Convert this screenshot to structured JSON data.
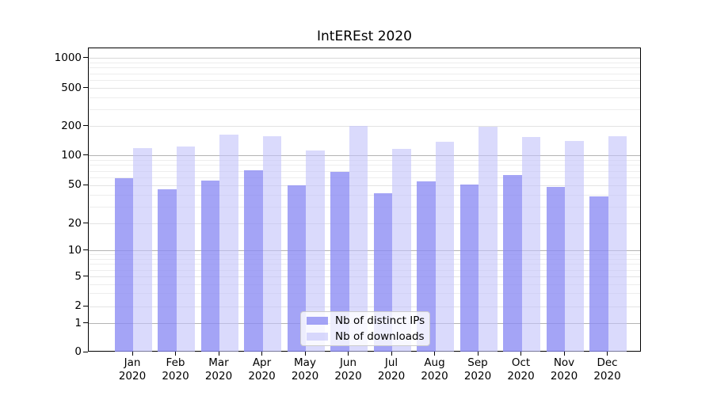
{
  "figure": {
    "background": "#ffffff"
  },
  "chart_data": {
    "type": "bar",
    "title": "IntEREst 2020",
    "categories": [
      "Jan",
      "Feb",
      "Mar",
      "Apr",
      "May",
      "Jun",
      "Jul",
      "Aug",
      "Sep",
      "Oct",
      "Nov",
      "Dec"
    ],
    "category_year": "2020",
    "series": [
      {
        "name": "Nb of distinct IPs",
        "color": "rgba(138,138,243,0.78)",
        "values": [
          60,
          46,
          56,
          72,
          50,
          69,
          42,
          55,
          51,
          64,
          49,
          39
        ]
      },
      {
        "name": "Nb of downloads",
        "color": "rgba(196,196,250,0.62)",
        "values": [
          119,
          124,
          165,
          158,
          114,
          205,
          117,
          140,
          200,
          156,
          143,
          160
        ]
      }
    ],
    "y_axis": {
      "scale": "symlog",
      "tick_values": [
        0,
        1,
        2,
        5,
        10,
        20,
        50,
        100,
        200,
        500,
        1000
      ],
      "tick_labels": [
        "0",
        "1",
        "2",
        "5",
        "10",
        "20",
        "50",
        "100",
        "200",
        "500",
        "1000"
      ],
      "top_value": 1300
    },
    "x_axis": {
      "tick_labels_line2": "2020"
    },
    "grid": {
      "minor_values": [
        3,
        4,
        6,
        7,
        8,
        9,
        30,
        40,
        60,
        70,
        80,
        90,
        300,
        400,
        600,
        700,
        800,
        900
      ],
      "minor_color": "#ededed",
      "labeled_color": "#e3e3e3",
      "major_values": [
        1,
        10,
        100
      ],
      "major_color": "#b4b4b4",
      "top_line_value": 1000,
      "top_line_color": "#d8d8d8"
    },
    "legend_position": "lower-center-inside",
    "axis_color": "#000000",
    "text_color": "#000000"
  }
}
